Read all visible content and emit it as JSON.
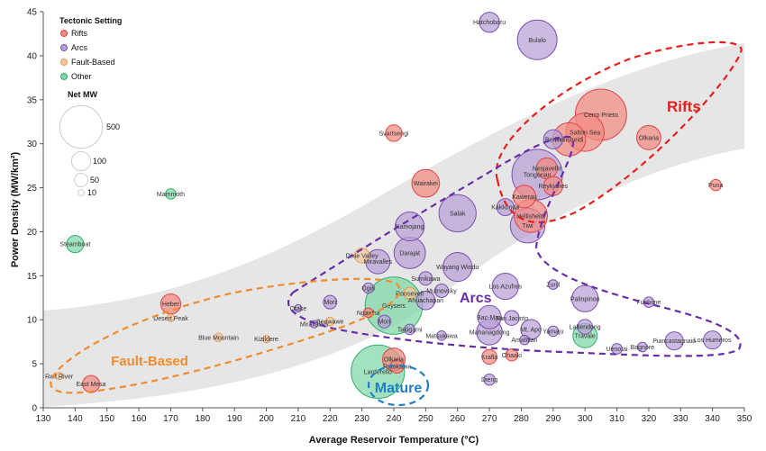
{
  "chart_data": {
    "type": "scatter",
    "xlabel": "Average Reservoir Temperature (°C)",
    "ylabel": "Power Density (MW/km²)",
    "xlim": [
      130,
      350
    ],
    "ylim": [
      0,
      45
    ],
    "xticks": [
      130,
      140,
      150,
      160,
      170,
      180,
      190,
      200,
      210,
      220,
      230,
      240,
      250,
      260,
      270,
      280,
      290,
      300,
      310,
      320,
      330,
      340,
      350
    ],
    "yticks": [
      0,
      5,
      10,
      15,
      20,
      25,
      30,
      35,
      40,
      45
    ],
    "legend": {
      "title": "Tectonic Setting",
      "position": "top-left",
      "items": [
        {
          "name": "Rifts",
          "color": "#f28b82"
        },
        {
          "name": "Arcs",
          "color": "#b9a0d6"
        },
        {
          "name": "Fault-Based",
          "color": "#f5c9a0"
        },
        {
          "name": "Other",
          "color": "#7fd7a6"
        }
      ],
      "size_title": "Net MW",
      "sizes": [
        {
          "label": "500",
          "mw": 500
        },
        {
          "label": "100",
          "mw": 100
        },
        {
          "label": "50",
          "mw": 50
        },
        {
          "label": "10",
          "mw": 10
        }
      ]
    },
    "colors": {
      "Rifts": {
        "fill": "#f28b82",
        "stroke": "#e04444"
      },
      "Arcs": {
        "fill": "#b9a0d6",
        "stroke": "#7b4fb3"
      },
      "Fault-Based": {
        "fill": "#f5c9a0",
        "stroke": "#e79a55"
      },
      "Other": {
        "fill": "#7fd7a6",
        "stroke": "#2fae6a"
      }
    },
    "regions": [
      {
        "name": "Rifts",
        "color": "#e8201c"
      },
      {
        "name": "Arcs",
        "color": "#6a2fa8"
      },
      {
        "name": "Fault-Based",
        "color": "#f08c2e"
      },
      {
        "name": "Mature",
        "color": "#1f7fc6"
      }
    ],
    "points": [
      {
        "name": "Hatchobaru",
        "setting": "Arcs",
        "x": 270,
        "y": 43.8,
        "mw": 110
      },
      {
        "name": "Bulalo",
        "setting": "Arcs",
        "x": 285,
        "y": 41.8,
        "mw": 430
      },
      {
        "name": "Cerro Prieto",
        "setting": "Rifts",
        "x": 305,
        "y": 33.3,
        "mw": 720
      },
      {
        "name": "Salton Sea",
        "setting": "Rifts",
        "x": 300,
        "y": 31.3,
        "mw": 400
      },
      {
        "name": "Berlin",
        "setting": "Arcs",
        "x": 290,
        "y": 30.5,
        "mw": 100
      },
      {
        "name": "Hellisheidi",
        "setting": "Rifts",
        "x": 295,
        "y": 30.5,
        "mw": 300
      },
      {
        "name": "Olkaria",
        "setting": "Rifts",
        "x": 320,
        "y": 30.7,
        "mw": 160
      },
      {
        "name": "Svartsengi",
        "setting": "Rifts",
        "x": 240,
        "y": 31.2,
        "mw": 75
      },
      {
        "name": "Wairakei",
        "setting": "Rifts",
        "x": 250,
        "y": 25.5,
        "mw": 210
      },
      {
        "name": "Puna",
        "setting": "Rifts",
        "x": 341,
        "y": 25.3,
        "mw": 35
      },
      {
        "name": "Nesjavellir",
        "setting": "Rifts",
        "x": 288,
        "y": 27.2,
        "mw": 120
      },
      {
        "name": "Reykjanes",
        "setting": "Rifts",
        "x": 290,
        "y": 25.2,
        "mw": 100
      },
      {
        "name": "Tongonan",
        "setting": "Arcs",
        "x": 285,
        "y": 26.5,
        "mw": 700
      },
      {
        "name": "Kawerau",
        "setting": "Rifts",
        "x": 281,
        "y": 24.0,
        "mw": 140
      },
      {
        "name": "Kakkonda",
        "setting": "Arcs",
        "x": 275,
        "y": 22.8,
        "mw": 80
      },
      {
        "name": "Hellisheidi",
        "setting": "Rifts",
        "x": 283,
        "y": 21.8,
        "mw": 300
      },
      {
        "name": "Tiwi",
        "setting": "Arcs",
        "x": 282,
        "y": 20.7,
        "mw": 330
      },
      {
        "name": "Salak",
        "setting": "Arcs",
        "x": 260,
        "y": 22.1,
        "mw": 380
      },
      {
        "name": "Mammoth",
        "setting": "Other",
        "x": 170,
        "y": 24.3,
        "mw": 30
      },
      {
        "name": "Kamojang",
        "setting": "Arcs",
        "x": 245,
        "y": 20.6,
        "mw": 230
      },
      {
        "name": "Darajat",
        "setting": "Arcs",
        "x": 245,
        "y": 17.6,
        "mw": 270
      },
      {
        "name": "Steamboat",
        "setting": "Other",
        "x": 140,
        "y": 18.6,
        "mw": 80
      },
      {
        "name": "Dixie Valley",
        "setting": "Fault-Based",
        "x": 230,
        "y": 17.3,
        "mw": 60
      },
      {
        "name": "Miravalles",
        "setting": "Arcs",
        "x": 235,
        "y": 16.6,
        "mw": 160
      },
      {
        "name": "Wayang Windu",
        "setting": "Arcs",
        "x": 260,
        "y": 16.0,
        "mw": 230
      },
      {
        "name": "Sumikawa",
        "setting": "Arcs",
        "x": 250,
        "y": 14.7,
        "mw": 50
      },
      {
        "name": "Ogiri",
        "setting": "Arcs",
        "x": 232,
        "y": 13.6,
        "mw": 30
      },
      {
        "name": "Mutnovsky",
        "setting": "Arcs",
        "x": 255,
        "y": 13.3,
        "mw": 50
      },
      {
        "name": "Roosevelt",
        "setting": "Fault-Based",
        "x": 245,
        "y": 13.0,
        "mw": 40
      },
      {
        "name": "Los Azufres",
        "setting": "Arcs",
        "x": 275,
        "y": 13.8,
        "mw": 190
      },
      {
        "name": "Zunil",
        "setting": "Arcs",
        "x": 290,
        "y": 14.0,
        "mw": 25
      },
      {
        "name": "Ahuachapan",
        "setting": "Arcs",
        "x": 250,
        "y": 12.2,
        "mw": 95
      },
      {
        "name": "Palinpinon",
        "setting": "Arcs",
        "x": 300,
        "y": 12.4,
        "mw": 190
      },
      {
        "name": "Fushime",
        "setting": "Arcs",
        "x": 320,
        "y": 12.0,
        "mw": 30
      },
      {
        "name": "Mori",
        "setting": "Arcs",
        "x": 220,
        "y": 12.0,
        "mw": 50
      },
      {
        "name": "Heber",
        "setting": "Rifts",
        "x": 170,
        "y": 11.8,
        "mw": 110
      },
      {
        "name": "Geysers",
        "setting": "Other",
        "x": 240,
        "y": 11.6,
        "mw": 900
      },
      {
        "name": "Otake",
        "setting": "Arcs",
        "x": 210,
        "y": 11.3,
        "mw": 15
      },
      {
        "name": "Ngawha",
        "setting": "Rifts",
        "x": 232,
        "y": 10.8,
        "mw": 25
      },
      {
        "name": "Beowawe",
        "setting": "Fault-Based",
        "x": 220,
        "y": 9.8,
        "mw": 20
      },
      {
        "name": "Bac-Man",
        "setting": "Arcs",
        "x": 270,
        "y": 10.3,
        "mw": 150
      },
      {
        "name": "San Jacinto",
        "setting": "Arcs",
        "x": 277,
        "y": 10.2,
        "mw": 60
      },
      {
        "name": "Desert Peak",
        "setting": "Fault-Based",
        "x": 170,
        "y": 10.2,
        "mw": 15
      },
      {
        "name": "Mori",
        "setting": "Arcs",
        "x": 237,
        "y": 9.8,
        "mw": 45
      },
      {
        "name": "Takigami",
        "setting": "Arcs",
        "x": 245,
        "y": 8.9,
        "mw": 30
      },
      {
        "name": "Matsukawa",
        "setting": "Arcs",
        "x": 255,
        "y": 8.2,
        "mw": 25
      },
      {
        "name": "Mahanagdong",
        "setting": "Arcs",
        "x": 270,
        "y": 8.6,
        "mw": 180
      },
      {
        "name": "Mt. Apo",
        "setting": "Arcs",
        "x": 283,
        "y": 8.9,
        "mw": 110
      },
      {
        "name": "Yamaju",
        "setting": "Arcs",
        "x": 290,
        "y": 8.7,
        "mw": 30
      },
      {
        "name": "Lahendong",
        "setting": "Arcs",
        "x": 300,
        "y": 9.2,
        "mw": 60
      },
      {
        "name": "Travale",
        "setting": "Other",
        "x": 300,
        "y": 8.2,
        "mw": 160
      },
      {
        "name": "Amatitlan",
        "setting": "Arcs",
        "x": 281,
        "y": 7.7,
        "mw": 25
      },
      {
        "name": "Blue Mountain",
        "setting": "Fault-Based",
        "x": 185,
        "y": 8.0,
        "mw": 20
      },
      {
        "name": "Kizildere",
        "setting": "Fault-Based",
        "x": 200,
        "y": 7.8,
        "mw": 15
      },
      {
        "name": "Miravalles",
        "setting": "Arcs",
        "x": 215,
        "y": 9.5,
        "mw": 15
      },
      {
        "name": "Piancastagnaio",
        "setting": "Arcs",
        "x": 328,
        "y": 7.6,
        "mw": 90
      },
      {
        "name": "Los Humeros",
        "setting": "Arcs",
        "x": 340,
        "y": 7.7,
        "mw": 90
      },
      {
        "name": "Bagnore",
        "setting": "Arcs",
        "x": 318,
        "y": 6.9,
        "mw": 25
      },
      {
        "name": "Uenotai",
        "setting": "Arcs",
        "x": 310,
        "y": 6.7,
        "mw": 30
      },
      {
        "name": "Krafla",
        "setting": "Rifts",
        "x": 270,
        "y": 5.8,
        "mw": 60
      },
      {
        "name": "Ohaaki",
        "setting": "Rifts",
        "x": 277,
        "y": 6.0,
        "mw": 40
      },
      {
        "name": "Olkaria",
        "setting": "Rifts",
        "x": 240,
        "y": 5.5,
        "mw": 140
      },
      {
        "name": "Rotokawa",
        "setting": "Rifts",
        "x": 241,
        "y": 4.7,
        "mw": 50
      },
      {
        "name": "Larderello",
        "setting": "Other",
        "x": 235,
        "y": 4.1,
        "mw": 780
      },
      {
        "name": "Dieng",
        "setting": "Arcs",
        "x": 270,
        "y": 3.2,
        "mw": 35
      },
      {
        "name": "Raft River",
        "setting": "Fault-Based",
        "x": 135,
        "y": 3.6,
        "mw": 15
      },
      {
        "name": "East Mesa",
        "setting": "Rifts",
        "x": 145,
        "y": 2.7,
        "mw": 80
      }
    ]
  },
  "region_labels": {
    "rifts": "Rifts",
    "arcs": "Arcs",
    "fault": "Fault-Based",
    "mature": "Mature"
  }
}
